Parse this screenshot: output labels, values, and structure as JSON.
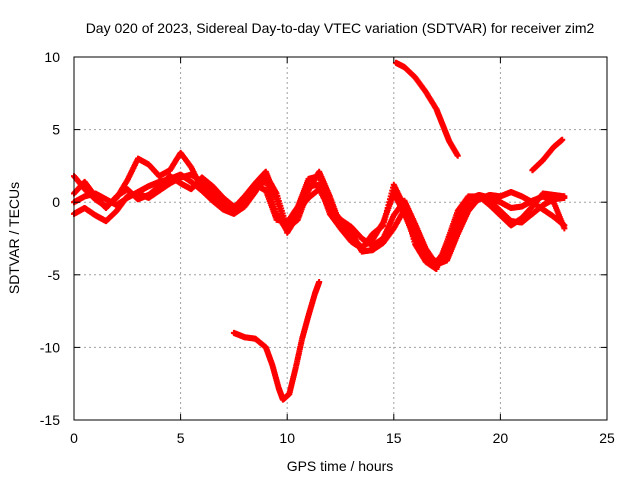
{
  "chart_data": {
    "type": "scatter",
    "title": "Day 020 of 2023, Sidereal Day-to-day VTEC variation (SDTVAR) for receiver zim2",
    "xlabel": "GPS time / hours",
    "ylabel": "SDTVAR / TECUs",
    "xlim": [
      0,
      25
    ],
    "ylim": [
      -15,
      10
    ],
    "xticks": [
      0,
      5,
      10,
      15,
      20,
      25
    ],
    "yticks": [
      -15,
      -10,
      -5,
      0,
      5,
      10
    ],
    "xtick_labels": [
      "0",
      "5",
      "10",
      "15",
      "20",
      "25"
    ],
    "ytick_labels": [
      "-15",
      "-10",
      "-5",
      "0",
      "5",
      "10"
    ],
    "grid": true,
    "marker_color": "#ff0000",
    "series": [
      {
        "name": "track-1",
        "points": [
          [
            0.0,
            1.8
          ],
          [
            0.5,
            0.9
          ],
          [
            1.0,
            0.2
          ],
          [
            1.5,
            -0.3
          ],
          [
            2.0,
            0.3
          ],
          [
            2.5,
            1.5
          ],
          [
            3.0,
            3.0
          ],
          [
            3.5,
            2.6
          ],
          [
            4.0,
            1.8
          ],
          [
            4.5,
            2.2
          ],
          [
            5.0,
            3.4
          ],
          [
            5.5,
            2.4
          ],
          [
            6.0,
            0.9
          ],
          [
            6.5,
            0.4
          ],
          [
            7.0,
            -0.2
          ],
          [
            7.5,
            -0.7
          ],
          [
            8.0,
            0.2
          ],
          [
            8.5,
            1.2
          ],
          [
            9.0,
            0.8
          ],
          [
            9.5,
            -1.2
          ],
          [
            10.0,
            -1.4
          ],
          [
            10.5,
            -0.3
          ],
          [
            11.0,
            1.6
          ],
          [
            11.5,
            1.8
          ],
          [
            12.0,
            -0.3
          ],
          [
            12.5,
            -1.2
          ],
          [
            13.0,
            -1.7
          ],
          [
            13.5,
            -2.5
          ],
          [
            14.0,
            -3.0
          ],
          [
            14.5,
            -2.5
          ],
          [
            15.0,
            -0.9
          ],
          [
            15.5,
            0.1
          ],
          [
            16.0,
            -1.5
          ],
          [
            16.5,
            -3.2
          ],
          [
            17.0,
            -4.3
          ],
          [
            17.5,
            -4.0
          ],
          [
            18.0,
            -2.2
          ],
          [
            18.5,
            -0.6
          ],
          [
            19.0,
            0.3
          ],
          [
            19.5,
            0.1
          ],
          [
            20.0,
            -0.6
          ],
          [
            20.5,
            -1.3
          ],
          [
            21.0,
            -1.4
          ],
          [
            21.5,
            -0.8
          ],
          [
            22.0,
            -0.2
          ],
          [
            22.5,
            0.2
          ],
          [
            23.0,
            0.3
          ]
        ]
      },
      {
        "name": "track-2",
        "points": [
          [
            0.0,
            0.0
          ],
          [
            0.5,
            0.4
          ],
          [
            1.0,
            0.6
          ],
          [
            1.5,
            0.2
          ],
          [
            2.0,
            -0.2
          ],
          [
            2.5,
            0.3
          ],
          [
            3.0,
            0.7
          ],
          [
            3.5,
            1.1
          ],
          [
            4.0,
            1.4
          ],
          [
            4.5,
            1.6
          ],
          [
            5.0,
            1.9
          ],
          [
            5.5,
            1.4
          ],
          [
            6.0,
            0.8
          ],
          [
            6.5,
            0.1
          ],
          [
            7.0,
            -0.5
          ],
          [
            7.5,
            -0.8
          ],
          [
            8.0,
            -0.3
          ],
          [
            8.5,
            0.7
          ],
          [
            9.0,
            1.9
          ],
          [
            9.5,
            0.6
          ],
          [
            10.0,
            -1.8
          ],
          [
            10.5,
            -1.2
          ],
          [
            11.0,
            0.8
          ],
          [
            11.5,
            2.1
          ],
          [
            12.0,
            0.4
          ],
          [
            12.5,
            -1.6
          ],
          [
            13.0,
            -2.4
          ],
          [
            13.5,
            -3.1
          ],
          [
            14.0,
            -2.6
          ],
          [
            14.5,
            -1.4
          ],
          [
            15.0,
            0.6
          ],
          [
            15.5,
            -0.8
          ],
          [
            16.0,
            -2.6
          ],
          [
            16.5,
            -3.8
          ],
          [
            17.0,
            -4.4
          ],
          [
            17.5,
            -3.4
          ],
          [
            18.0,
            -1.1
          ],
          [
            18.5,
            0.2
          ],
          [
            19.0,
            0.5
          ],
          [
            19.5,
            0.3
          ],
          [
            20.0,
            0.0
          ],
          [
            20.5,
            -0.4
          ],
          [
            21.0,
            -0.3
          ],
          [
            21.5,
            0.1
          ],
          [
            22.0,
            0.4
          ],
          [
            22.5,
            0.0
          ],
          [
            23.0,
            -1.8
          ]
        ]
      },
      {
        "name": "track-3",
        "points": [
          [
            0.0,
            -0.8
          ],
          [
            0.5,
            -0.4
          ],
          [
            1.0,
            -0.9
          ],
          [
            1.5,
            -1.3
          ],
          [
            2.0,
            -0.6
          ],
          [
            2.5,
            0.4
          ],
          [
            3.0,
            0.6
          ],
          [
            3.5,
            0.3
          ],
          [
            4.0,
            0.8
          ],
          [
            4.5,
            1.3
          ],
          [
            5.0,
            1.7
          ],
          [
            5.5,
            1.9
          ],
          [
            6.0,
            1.4
          ],
          [
            6.5,
            0.6
          ],
          [
            7.0,
            -0.1
          ],
          [
            7.5,
            -0.4
          ],
          [
            8.0,
            0.4
          ],
          [
            8.5,
            1.3
          ],
          [
            9.0,
            2.1
          ],
          [
            9.5,
            0.2
          ],
          [
            10.0,
            -2.1
          ],
          [
            10.5,
            -0.9
          ],
          [
            11.0,
            1.1
          ],
          [
            11.5,
            1.2
          ],
          [
            12.0,
            -0.8
          ],
          [
            12.5,
            -1.8
          ],
          [
            13.0,
            -2.7
          ],
          [
            13.5,
            -3.2
          ],
          [
            14.0,
            -2.2
          ],
          [
            14.5,
            -1.6
          ],
          [
            15.0,
            1.2
          ],
          [
            15.5,
            -0.3
          ],
          [
            16.0,
            -2.9
          ],
          [
            16.5,
            -4.1
          ],
          [
            17.0,
            -4.6
          ],
          [
            17.5,
            -2.7
          ],
          [
            18.0,
            -0.6
          ],
          [
            18.5,
            0.4
          ],
          [
            19.0,
            0.4
          ],
          [
            19.5,
            -0.2
          ],
          [
            20.0,
            -0.9
          ],
          [
            20.5,
            -1.6
          ],
          [
            21.0,
            -1.1
          ],
          [
            21.5,
            -0.3
          ],
          [
            22.0,
            0.6
          ],
          [
            22.5,
            0.5
          ],
          [
            23.0,
            0.4
          ]
        ]
      },
      {
        "name": "track-4",
        "points": [
          [
            0.0,
            0.6
          ],
          [
            0.5,
            1.4
          ],
          [
            1.0,
            0.4
          ],
          [
            1.5,
            -0.4
          ],
          [
            2.0,
            0.4
          ],
          [
            2.5,
            0.9
          ],
          [
            3.0,
            0.2
          ],
          [
            3.5,
            0.5
          ],
          [
            4.0,
            1.1
          ],
          [
            4.5,
            1.8
          ],
          [
            5.0,
            1.3
          ],
          [
            5.5,
            0.9
          ],
          [
            6.0,
            1.7
          ],
          [
            6.5,
            1.1
          ],
          [
            7.0,
            0.3
          ],
          [
            7.5,
            -0.3
          ],
          [
            8.0,
            0.0
          ],
          [
            8.5,
            0.9
          ],
          [
            9.0,
            1.5
          ],
          [
            9.5,
            -0.8
          ],
          [
            10.0,
            -2.0
          ],
          [
            10.5,
            -0.6
          ],
          [
            11.0,
            0.3
          ],
          [
            11.5,
            0.9
          ],
          [
            12.0,
            -0.5
          ],
          [
            12.5,
            -1.4
          ],
          [
            13.0,
            -2.0
          ],
          [
            13.5,
            -3.4
          ],
          [
            14.0,
            -3.3
          ],
          [
            14.5,
            -2.8
          ],
          [
            15.0,
            -1.8
          ],
          [
            15.5,
            -0.5
          ],
          [
            16.0,
            -1.8
          ],
          [
            16.5,
            -3.6
          ],
          [
            17.0,
            -4.1
          ],
          [
            17.5,
            -3.2
          ],
          [
            18.0,
            -1.5
          ],
          [
            18.5,
            -0.3
          ],
          [
            19.0,
            0.2
          ],
          [
            19.5,
            0.5
          ],
          [
            20.0,
            0.4
          ],
          [
            20.5,
            0.7
          ],
          [
            21.0,
            0.4
          ],
          [
            21.5,
            0.0
          ],
          [
            22.0,
            -0.5
          ],
          [
            22.5,
            -1.0
          ],
          [
            23.0,
            -1.6
          ]
        ]
      },
      {
        "name": "arc-high",
        "points": [
          [
            15.1,
            9.6
          ],
          [
            15.5,
            9.3
          ],
          [
            16.0,
            8.6
          ],
          [
            16.5,
            7.6
          ],
          [
            17.0,
            6.4
          ],
          [
            17.3,
            5.3
          ],
          [
            17.6,
            4.2
          ],
          [
            18.0,
            3.2
          ],
          [
            21.5,
            2.2
          ],
          [
            22.0,
            2.9
          ],
          [
            22.5,
            3.8
          ],
          [
            22.9,
            4.3
          ]
        ]
      },
      {
        "name": "arc-low",
        "points": [
          [
            7.5,
            -9.0
          ],
          [
            8.0,
            -9.3
          ],
          [
            8.5,
            -9.4
          ],
          [
            9.0,
            -10.0
          ],
          [
            9.3,
            -11.2
          ],
          [
            9.6,
            -12.8
          ],
          [
            9.8,
            -13.6
          ],
          [
            10.1,
            -13.2
          ],
          [
            10.4,
            -11.4
          ],
          [
            10.7,
            -9.4
          ],
          [
            11.0,
            -7.8
          ],
          [
            11.3,
            -6.3
          ],
          [
            11.5,
            -5.5
          ]
        ]
      }
    ]
  }
}
